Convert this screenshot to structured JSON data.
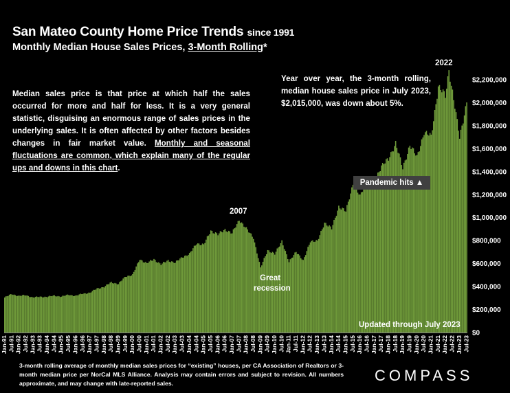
{
  "title": {
    "main": "San Mateo County Home Price Trends",
    "since": "since 1991",
    "sub_prefix": "Monthly Median House Sales Prices,",
    "sub_rolling": "3-Month Rolling",
    "sub_suffix": "*"
  },
  "description": {
    "plain": "Median sales price is that price at which half the sales occurred for more and half for less. It is a very general statistic, disguising an enormous range of sales prices in the underlying sales. It is often affected by other factors besides changes in fair market value.",
    "underlined": "Monthly and seasonal fluctuations are common, which explain many of the regular ups and downs in this chart",
    "end": "."
  },
  "yoy_note": "Year over year, the 3-month rolling, median house sales price in July 2023, $2,015,000, was down about 5%.",
  "footnote": "3-month rolling average of monthly median sales prices for “existing” houses, per CA Association of Realtors or 3-month median price per NorCal MLS Alliance. Analysis may contain errors and subject to revision. All numbers approximate, and may change with late-reported sales.",
  "logo": "COMPASS",
  "colors": {
    "bar": "#6f9a3a",
    "bar_edge": "#4a6a22",
    "background": "#000000",
    "text": "#ffffff",
    "label_box": "#404040"
  },
  "chart_data": {
    "type": "bar",
    "ylim": [
      0,
      2300000
    ],
    "y_ticks": [
      {
        "value": 0,
        "label": "$0"
      },
      {
        "value": 200000,
        "label": "$200,000"
      },
      {
        "value": 400000,
        "label": "$400,000"
      },
      {
        "value": 600000,
        "label": "$600,000"
      },
      {
        "value": 800000,
        "label": "$800,000"
      },
      {
        "value": 1000000,
        "label": "$1,000,000"
      },
      {
        "value": 1200000,
        "label": "$1,200,000"
      },
      {
        "value": 1400000,
        "label": "$1,400,000"
      },
      {
        "value": 1600000,
        "label": "$1,600,000"
      },
      {
        "value": 1800000,
        "label": "$1,800,000"
      },
      {
        "value": 2000000,
        "label": "$2,000,000"
      },
      {
        "value": 2200000,
        "label": "$2,200,000"
      }
    ],
    "x_ticks": [
      "Jan-91",
      "Jul-91",
      "Jan-92",
      "Jul-92",
      "Jan-93",
      "Jul-93",
      "Jan-94",
      "Jul-94",
      "Jan-95",
      "Jul-95",
      "Jan-96",
      "Jul-96",
      "Jan-97",
      "Jul-97",
      "Jan-98",
      "Jul-98",
      "Jan-99",
      "Jul-99",
      "Jan-00",
      "Jul-00",
      "Jan-01",
      "Jul-01",
      "Jan-02",
      "Jul-02",
      "Jan-03",
      "Jul-03",
      "Jan-04",
      "Jul-04",
      "Jan-05",
      "Jul-05",
      "Jan-06",
      "Jul-06",
      "Jan-07",
      "Jul-07",
      "Jan-08",
      "Jul-08",
      "Jan-09",
      "Jul-09",
      "Jan-10",
      "Jul-10",
      "Jan-11",
      "Jul-11",
      "Jan-12",
      "Jul-12",
      "Jan-13",
      "Jul-13",
      "Jan-14",
      "Jul-14",
      "Jan-15",
      "Jul-15",
      "Jan-16",
      "Jul-16",
      "Jan-17",
      "Jul-17",
      "Jan-18",
      "Jul-18",
      "Jan-19",
      "Jul-19",
      "Jan-20",
      "Jul-20",
      "Jan-21",
      "Jul-21",
      "Jan-22",
      "Jul-22",
      "Jan-23",
      "Jul-23"
    ],
    "series": [
      {
        "frequency": "monthly",
        "start": "Jan-91",
        "end": "Jul-23",
        "anchors": [
          [
            "Jan-91",
            305000
          ],
          [
            "Jul-91",
            335000
          ],
          [
            "Jan-92",
            318000
          ],
          [
            "Jul-92",
            325000
          ],
          [
            "Jan-93",
            305000
          ],
          [
            "Jul-93",
            312000
          ],
          [
            "Jan-94",
            310000
          ],
          [
            "Jul-94",
            322000
          ],
          [
            "Jan-95",
            312000
          ],
          [
            "Jul-95",
            330000
          ],
          [
            "Jan-96",
            318000
          ],
          [
            "Jul-96",
            340000
          ],
          [
            "Jan-97",
            345000
          ],
          [
            "Jul-97",
            385000
          ],
          [
            "Jan-98",
            395000
          ],
          [
            "Jul-98",
            440000
          ],
          [
            "Jan-99",
            420000
          ],
          [
            "Jul-99",
            490000
          ],
          [
            "Jan-00",
            500000
          ],
          [
            "Jul-00",
            640000
          ],
          [
            "Jan-01",
            600000
          ],
          [
            "Jul-01",
            640000
          ],
          [
            "Jan-02",
            590000
          ],
          [
            "Jul-02",
            630000
          ],
          [
            "Jan-03",
            605000
          ],
          [
            "Jul-03",
            660000
          ],
          [
            "Jan-04",
            680000
          ],
          [
            "Jul-04",
            780000
          ],
          [
            "Jan-05",
            760000
          ],
          [
            "Jul-05",
            890000
          ],
          [
            "Jan-06",
            850000
          ],
          [
            "Jul-06",
            900000
          ],
          [
            "Jan-07",
            860000
          ],
          [
            "Jul-07",
            985000
          ],
          [
            "Jan-08",
            900000
          ],
          [
            "Jul-08",
            830000
          ],
          [
            "Jan-09",
            560000
          ],
          [
            "Jul-09",
            720000
          ],
          [
            "Jan-10",
            680000
          ],
          [
            "Jul-10",
            800000
          ],
          [
            "Jan-11",
            610000
          ],
          [
            "Jul-11",
            710000
          ],
          [
            "Jan-12",
            620000
          ],
          [
            "Jul-12",
            800000
          ],
          [
            "Jan-13",
            790000
          ],
          [
            "Jul-13",
            960000
          ],
          [
            "Jan-14",
            900000
          ],
          [
            "Jul-14",
            1100000
          ],
          [
            "Jan-15",
            1050000
          ],
          [
            "Jul-15",
            1300000
          ],
          [
            "Jan-16",
            1180000
          ],
          [
            "Jul-16",
            1350000
          ],
          [
            "Jan-17",
            1300000
          ],
          [
            "Jul-17",
            1460000
          ],
          [
            "Jan-18",
            1500000
          ],
          [
            "Jul-18",
            1660000
          ],
          [
            "Jan-19",
            1420000
          ],
          [
            "Jul-19",
            1640000
          ],
          [
            "Jan-20",
            1520000
          ],
          [
            "Jul-20",
            1750000
          ],
          [
            "Jan-21",
            1700000
          ],
          [
            "Jul-21",
            2150000
          ],
          [
            "Jan-22",
            2050000
          ],
          [
            "Apr-22",
            2290000
          ],
          [
            "Jul-22",
            2100000
          ],
          [
            "Jan-23",
            1690000
          ],
          [
            "Jul-23",
            2015000
          ]
        ]
      }
    ],
    "annotations": [
      {
        "label": "2007",
        "at": "Jul-07"
      },
      {
        "label": "Great",
        "at": "Jan-09"
      },
      {
        "label": "recession",
        "at": "Jan-09"
      },
      {
        "label": "2022",
        "at": "Apr-22"
      },
      {
        "label": "Pandemic hits ▲",
        "at": "Mar-20"
      },
      {
        "label": "Updated through July 2023",
        "at": "Jul-23"
      }
    ]
  }
}
